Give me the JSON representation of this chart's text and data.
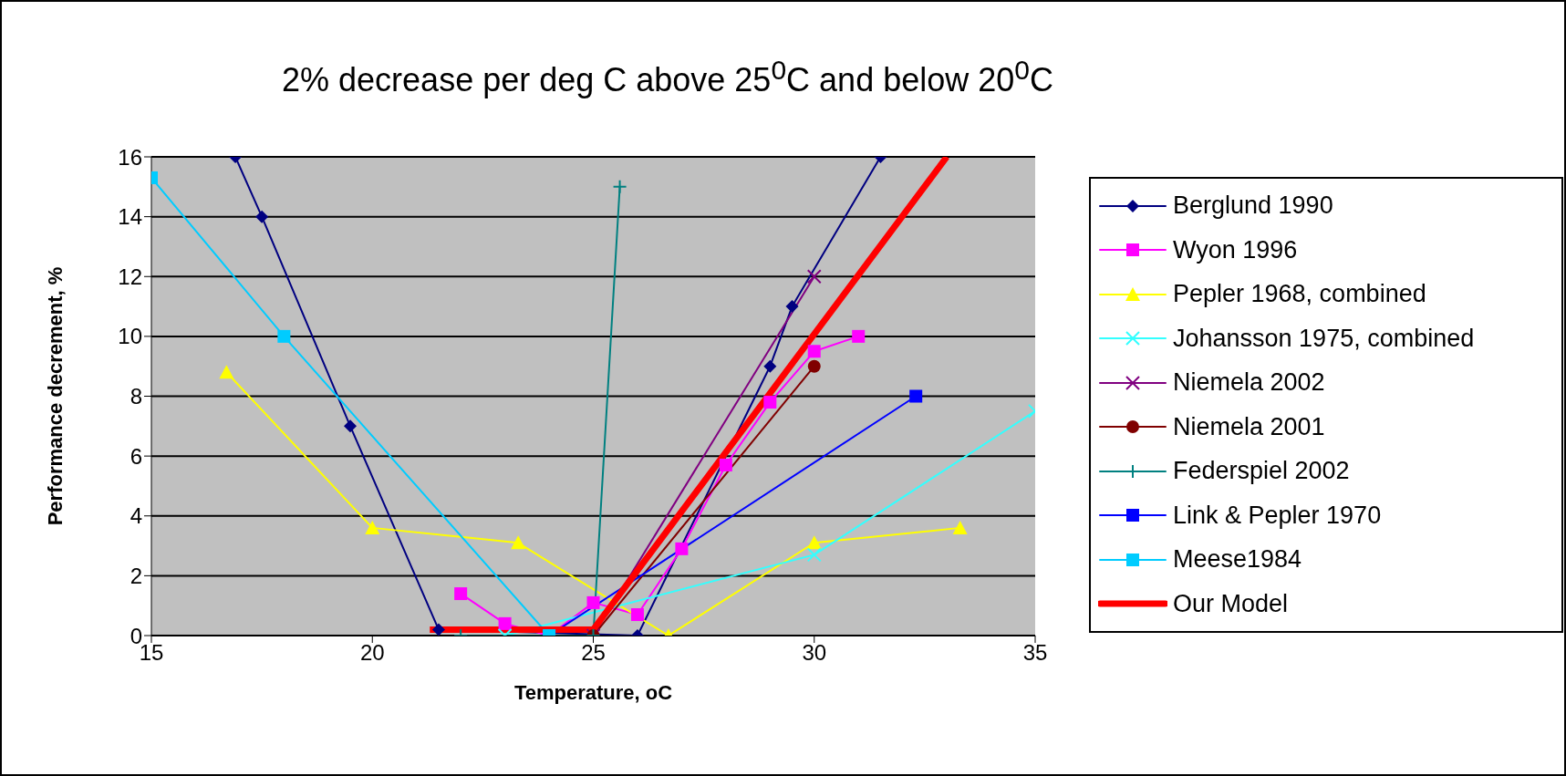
{
  "chart_data": {
    "type": "line",
    "title": "2% decrease per deg C above 25$^{0}$C and below 20$^{0}$C",
    "xlabel": "Temperature, oC",
    "ylabel": "Performance decrement, %",
    "xlim": [
      15,
      35
    ],
    "xticks": [
      15,
      20,
      25,
      30,
      35
    ],
    "ylim": [
      0,
      16
    ],
    "yticks": [
      0,
      2,
      4,
      6,
      8,
      10,
      12,
      14,
      16
    ],
    "grid": "y",
    "legend": "right",
    "series": [
      {
        "name": "Berglund 1990",
        "color": "#000080",
        "marker": "diamond",
        "x": [
          16.9,
          17.5,
          19.5,
          21.5,
          26,
          29,
          29.5,
          31.5
        ],
        "values": [
          16,
          14,
          7,
          0.2,
          0,
          9,
          11,
          16
        ]
      },
      {
        "name": "Wyon 1996",
        "color": "#ff00ff",
        "marker": "square",
        "x": [
          22,
          23,
          24,
          25,
          26,
          27,
          28,
          29,
          30,
          31
        ],
        "values": [
          1.4,
          0.4,
          0,
          1.1,
          0.7,
          2.9,
          5.7,
          7.8,
          9.5,
          10
        ]
      },
      {
        "name": "Pepler 1968, combined",
        "color": "#ffff00",
        "marker": "triangle",
        "x": [
          16.7,
          20,
          23.3,
          26.7,
          30,
          33.3
        ],
        "values": [
          8.8,
          3.6,
          3.1,
          0,
          3.1,
          3.6
        ]
      },
      {
        "name": "Johansson 1975, combined",
        "color": "#33ffff",
        "marker": "cross",
        "x": [
          23,
          30,
          35
        ],
        "values": [
          0,
          2.7,
          7.5
        ]
      },
      {
        "name": "Niemela 2002",
        "color": "#800080",
        "marker": "cross",
        "x": [
          25,
          30
        ],
        "values": [
          0,
          12
        ]
      },
      {
        "name": "Niemela 2001",
        "color": "#800000",
        "marker": "circle",
        "x": [
          25,
          30
        ],
        "values": [
          0,
          9
        ]
      },
      {
        "name": "Federspiel 2002",
        "color": "#008080",
        "marker": "plus",
        "x": [
          22,
          25,
          25.6
        ],
        "values": [
          0,
          0,
          15
        ]
      },
      {
        "name": "Link & Pepler 1970",
        "color": "#0000ff",
        "marker": "square",
        "x": [
          24,
          32.3
        ],
        "values": [
          0,
          8
        ]
      },
      {
        "name": "Meese1984",
        "color": "#00ccff",
        "marker": "square",
        "x": [
          15,
          18,
          24
        ],
        "values": [
          15.3,
          10,
          0
        ]
      },
      {
        "name": "Our Model",
        "color": "#ff0000",
        "marker": "none",
        "x": [
          21.3,
          25,
          33
        ],
        "values": [
          0.2,
          0.2,
          16
        ]
      }
    ]
  }
}
